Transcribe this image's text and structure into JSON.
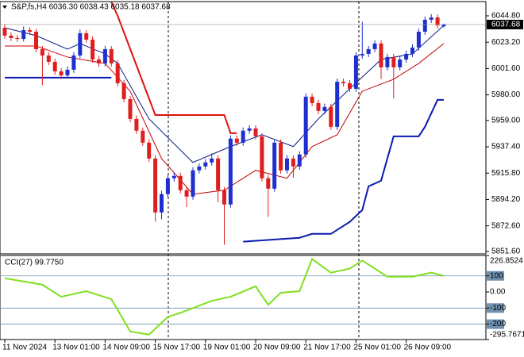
{
  "chart_data": [
    {
      "type": "candlestick",
      "title": "S&P,fs,H4  6036.30 6038.43 6035.18 6037.68",
      "up_color": "#1f2fd0",
      "down_color": "#e01e1e",
      "ylim": [
        5849.6,
        6056.5
      ],
      "yticks": [
        {
          "value": 6044.8,
          "label": "6044.80"
        },
        {
          "value": 6023.2,
          "label": "6023.20"
        },
        {
          "value": 6001.6,
          "label": "6001.60"
        },
        {
          "value": 5980,
          "label": "5980.00"
        },
        {
          "value": 5959,
          "label": "5959.00"
        },
        {
          "value": 5937.4,
          "label": "5937.40"
        },
        {
          "value": 5915.8,
          "label": "5915.80"
        },
        {
          "value": 5894.2,
          "label": "5894.20"
        },
        {
          "value": 5872.6,
          "label": "5872.60"
        },
        {
          "value": 5851.6,
          "label": "5851.60"
        }
      ],
      "current_price": {
        "value": 6037.68,
        "label": "6037.68"
      },
      "xticks": [
        {
          "value": 0,
          "label": "11 Nov 2024"
        },
        {
          "value": 8,
          "label": "13 Nov 01:00"
        },
        {
          "value": 16,
          "label": "14 Nov 09:00"
        },
        {
          "value": 24,
          "label": "15 Nov 17:00"
        },
        {
          "value": 32,
          "label": "19 Nov 01:00"
        },
        {
          "value": 40,
          "label": "20 Nov 09:00"
        },
        {
          "value": 48,
          "label": "21 Nov 17:00"
        },
        {
          "value": 56,
          "label": "25 Nov 01:00"
        },
        {
          "value": 64,
          "label": "26 Nov 09:00"
        }
      ],
      "candles": [
        [
          6035.0,
          6038.0,
          6026.1,
          6028.6
        ],
        [
          6028.6,
          6031.2,
          6024.0,
          6026.6
        ],
        [
          6026.6,
          6029.0,
          6023.5,
          6025.9
        ],
        [
          6025.9,
          6036.0,
          6023.8,
          6033.1
        ],
        [
          6033.1,
          6035.5,
          6029.0,
          6031.8
        ],
        [
          6031.8,
          6034.2,
          6015.0,
          6017.5
        ],
        [
          6017.5,
          6020.0,
          5988.0,
          6012.3
        ],
        [
          6012.3,
          6015.0,
          6004.5,
          6007.1
        ],
        [
          6007.1,
          6009.8,
          5996.5,
          5999.3
        ],
        [
          5999.3,
          6002.0,
          5993.2,
          5996.0
        ],
        [
          5996.0,
          6003.5,
          5993.5,
          6000.6
        ],
        [
          6000.6,
          6015.0,
          5998.0,
          6012.3
        ],
        [
          6012.3,
          6033.5,
          6010.0,
          6030.5
        ],
        [
          6030.5,
          6033.0,
          6022.8,
          6025.3
        ],
        [
          6025.3,
          6028.0,
          6006.5,
          6009.0
        ],
        [
          6009.0,
          6012.0,
          6003.0,
          6005.8
        ],
        [
          6005.8,
          6020.2,
          6003.4,
          6017.5
        ],
        [
          6017.5,
          6020.0,
          6003.2,
          6005.8
        ],
        [
          6005.8,
          6008.4,
          5987.0,
          5989.6
        ],
        [
          5989.6,
          5992.2,
          5974.0,
          5976.5
        ],
        [
          5976.5,
          5979.0,
          5957.6,
          5960.3
        ],
        [
          5960.3,
          5963.0,
          5948.0,
          5950.6
        ],
        [
          5950.6,
          5953.2,
          5938.2,
          5940.8
        ],
        [
          5940.8,
          5943.5,
          5925.0,
          5927.8
        ],
        [
          5927.8,
          5930.5,
          5876.0,
          5883.6
        ],
        [
          5883.6,
          5901.3,
          5878.0,
          5898.6
        ],
        [
          5898.6,
          5914.3,
          5896.0,
          5911.6
        ],
        [
          5911.6,
          5916.0,
          5909.0,
          5913.5
        ],
        [
          5913.5,
          5916.2,
          5899.2,
          5901.8
        ],
        [
          5901.8,
          5904.4,
          5888.0,
          5896.6
        ],
        [
          5896.6,
          5920.8,
          5894.0,
          5918.1
        ],
        [
          5918.1,
          5924.0,
          5915.5,
          5921.3
        ],
        [
          5921.3,
          5927.3,
          5918.7,
          5924.6
        ],
        [
          5924.6,
          5932.0,
          5922.0,
          5927.8
        ],
        [
          5927.8,
          5930.4,
          5892.0,
          5901.8
        ],
        [
          5901.8,
          5904.5,
          5857.0,
          5890.1
        ],
        [
          5890.1,
          5946.8,
          5887.5,
          5944.1
        ],
        [
          5944.1,
          5946.7,
          5938.2,
          5940.8
        ],
        [
          5940.8,
          5953.3,
          5938.2,
          5950.6
        ],
        [
          5950.6,
          5955.2,
          5948.0,
          5952.5
        ],
        [
          5952.5,
          5955.0,
          5943.4,
          5946.0
        ],
        [
          5946.0,
          5948.6,
          5909.0,
          5911.6
        ],
        [
          5911.6,
          5914.2,
          5880.0,
          5903.1
        ],
        [
          5903.1,
          5943.5,
          5900.5,
          5940.8
        ],
        [
          5940.8,
          5943.4,
          5915.5,
          5918.1
        ],
        [
          5918.1,
          5930.5,
          5915.5,
          5927.8
        ],
        [
          5927.8,
          5930.4,
          5912.0,
          5921.3
        ],
        [
          5921.3,
          5933.8,
          5918.7,
          5931.1
        ],
        [
          5931.1,
          5981.2,
          5928.5,
          5978.5
        ],
        [
          5978.5,
          5981.1,
          5970.7,
          5973.3
        ],
        [
          5973.3,
          5975.9,
          5964.2,
          5966.8
        ],
        [
          5966.8,
          5972.8,
          5964.2,
          5970.1
        ],
        [
          5970.1,
          5972.7,
          5951.2,
          5953.8
        ],
        [
          5953.8,
          5993.5,
          5951.2,
          5990.8
        ],
        [
          5990.8,
          5993.4,
          5987.0,
          5989.6
        ],
        [
          5989.6,
          5992.2,
          5982.4,
          5985.0
        ],
        [
          5985.0,
          6015.0,
          5982.4,
          6012.3
        ],
        [
          6012.3,
          6040.0,
          6009.7,
          6013.6
        ],
        [
          6013.6,
          6020.2,
          6011.0,
          6017.5
        ],
        [
          6017.5,
          6024.8,
          6014.9,
          6022.1
        ],
        [
          6022.1,
          6024.7,
          5993.0,
          6002.6
        ],
        [
          6002.6,
          6013.7,
          6000.0,
          6011.0
        ],
        [
          6011.0,
          6013.6,
          5977.0,
          6002.6
        ],
        [
          6002.6,
          6011.7,
          6000.0,
          6009.0
        ],
        [
          6009.0,
          6016.3,
          6006.4,
          6013.6
        ],
        [
          6013.6,
          6021.5,
          6011.0,
          6018.8
        ],
        [
          6018.8,
          6034.5,
          6016.2,
          6031.8
        ],
        [
          6031.8,
          6044.3,
          6029.2,
          6041.6
        ],
        [
          6041.6,
          6046.2,
          6039.0,
          6043.5
        ],
        [
          6043.5,
          6046.1,
          6034.4,
          6037.0
        ],
        [
          6036.3,
          6038.43,
          6035.18,
          6037.68
        ]
      ],
      "lines": [
        {
          "color": "#0a1a8a",
          "width": 1,
          "x": [
            0,
            5,
            10,
            12,
            16,
            18,
            23,
            30,
            36,
            41,
            46,
            50,
            55,
            60,
            65,
            70
          ],
          "values": [
            6035.0,
            6028.6,
            6017.5,
            6022.1,
            6013.6,
            6005.8,
            5960.3,
            5924.6,
            5937.6,
            5947.3,
            5937.6,
            5960.3,
            5985.0,
            6009.0,
            6013.6,
            6037.0
          ]
        },
        {
          "color": "#c00000",
          "width": 1,
          "x": [
            0,
            5,
            10,
            16,
            20,
            25,
            30,
            35,
            40,
            45,
            49,
            53,
            57,
            62,
            66,
            70
          ],
          "values": [
            6020.1,
            6020.1,
            6011.0,
            6005.8,
            5983.0,
            5927.8,
            5898.6,
            5901.8,
            5918.1,
            5911.6,
            5937.6,
            5947.3,
            5983.0,
            5992.8,
            6005.8,
            6022.1
          ]
        },
        {
          "color": "#e01010",
          "width": 2,
          "x": [
            17,
            18,
            24,
            35,
            36,
            37
          ],
          "values": [
            6056.0,
            6044.8,
            5963.5,
            5963.5,
            5948.6,
            5948.6
          ]
        },
        {
          "color": "#0a1ab0",
          "width": 2,
          "x": [
            0,
            17
          ],
          "values": [
            5994.1,
            5994.1
          ]
        },
        {
          "color": "#0a1ab0",
          "width": 2,
          "x": [
            38,
            47,
            49,
            52,
            55,
            57,
            58,
            60,
            61,
            62,
            66,
            67,
            69,
            70
          ],
          "values": [
            5859.6,
            5862.8,
            5866.0,
            5866.0,
            5875.8,
            5885.6,
            5905.0,
            5909.6,
            5927.8,
            5946.0,
            5946.0,
            5953.8,
            5975.9,
            5975.9
          ]
        }
      ]
    },
    {
      "type": "line",
      "title": "CCI(27) 99.7750",
      "color": "#80e020",
      "ylim": [
        -295.7671,
        226.8524
      ],
      "yticks": [
        226.8524,
        100,
        {
          "value": 0,
          "label": "0.00"
        },
        -100,
        -200,
        -295.7671
      ],
      "levels": [
        100,
        -100,
        -200
      ],
      "x": [
        0,
        6,
        9,
        13,
        17,
        20,
        23,
        26,
        28,
        33,
        36,
        40,
        42,
        44,
        47,
        49,
        52,
        55,
        57,
        61,
        65,
        68,
        70
      ],
      "values": [
        85,
        45,
        -30,
        5,
        -45,
        -245,
        -265,
        -155,
        -130,
        -55,
        -30,
        35,
        -80,
        -5,
        5,
        205,
        120,
        145,
        195,
        95,
        95,
        120,
        99.775
      ]
    }
  ]
}
